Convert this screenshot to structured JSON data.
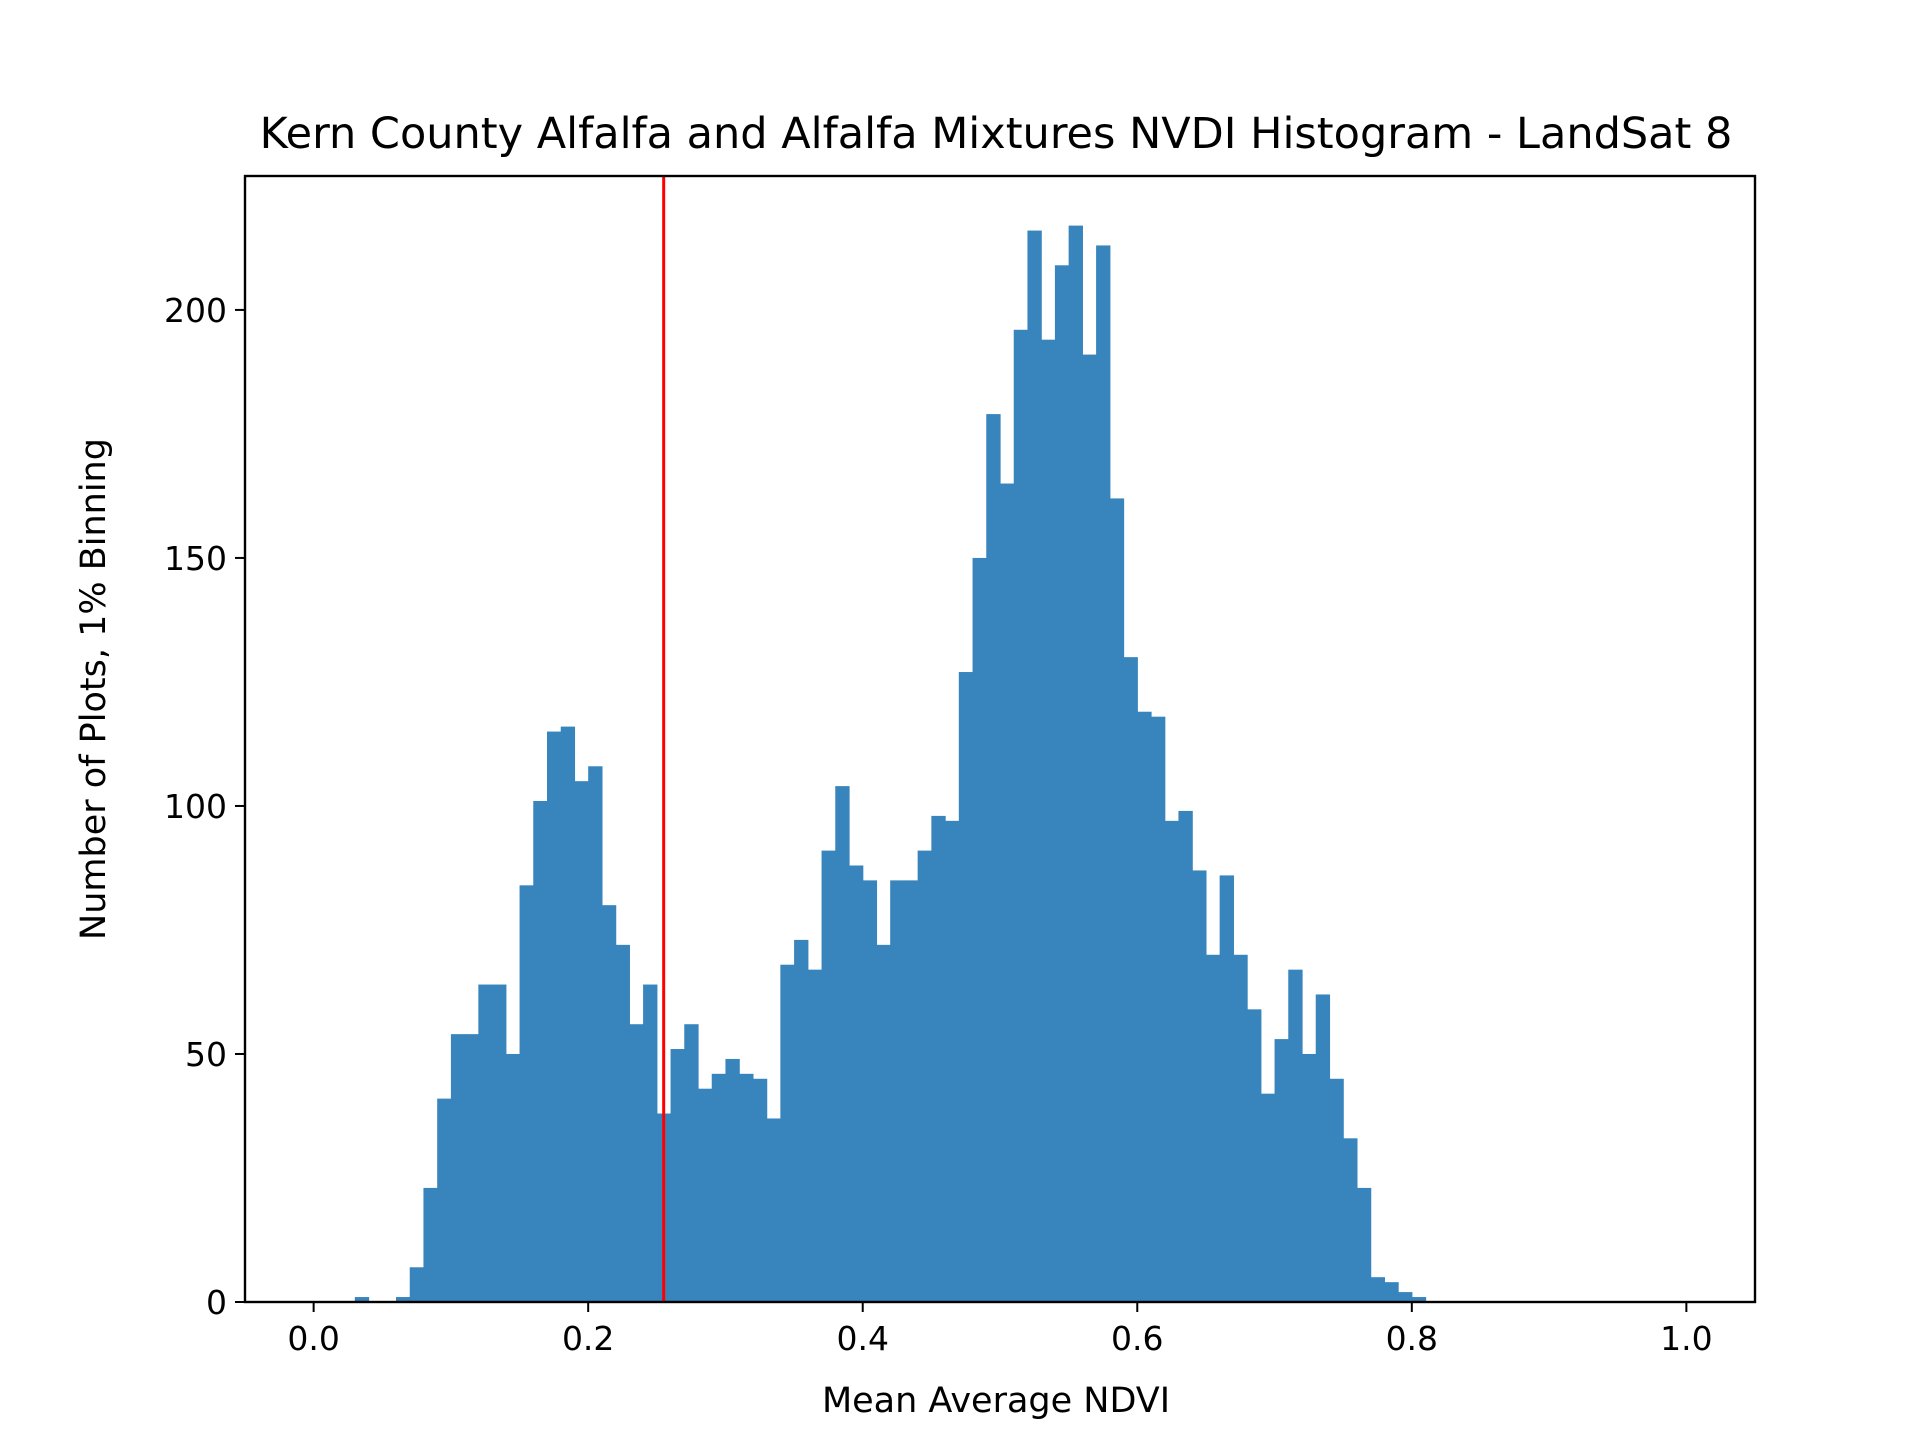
{
  "chart_data": {
    "type": "bar",
    "title": "Kern County Alfalfa and Alfalfa Mixtures NVDI Histogram - LandSat 8",
    "xlabel": "Mean Average NDVI",
    "ylabel": "Number of Plots, 1% Binning",
    "xlim": [
      -0.05,
      1.05
    ],
    "ylim": [
      0,
      227
    ],
    "xticks": [
      0.0,
      0.2,
      0.4,
      0.6,
      0.8,
      1.0
    ],
    "xtick_labels": [
      "0.0",
      "0.2",
      "0.4",
      "0.6",
      "0.8",
      "1.0"
    ],
    "yticks": [
      0,
      50,
      100,
      150,
      200
    ],
    "ytick_labels": [
      "0",
      "50",
      "100",
      "150",
      "200"
    ],
    "bin_width": 0.01,
    "bin_starts": [
      0.0,
      0.01,
      0.02,
      0.03,
      0.04,
      0.05,
      0.06,
      0.07,
      0.08,
      0.09,
      0.1,
      0.11,
      0.12,
      0.13,
      0.14,
      0.15,
      0.16,
      0.17,
      0.18,
      0.19,
      0.2,
      0.21,
      0.22,
      0.23,
      0.24,
      0.25,
      0.26,
      0.27,
      0.28,
      0.29,
      0.3,
      0.31,
      0.32,
      0.33,
      0.34,
      0.35,
      0.36,
      0.37,
      0.38,
      0.39,
      0.4,
      0.41,
      0.42,
      0.43,
      0.44,
      0.45,
      0.46,
      0.47,
      0.48,
      0.49,
      0.5,
      0.51,
      0.52,
      0.53,
      0.54,
      0.55,
      0.56,
      0.57,
      0.58,
      0.59,
      0.6,
      0.61,
      0.62,
      0.63,
      0.64,
      0.65,
      0.66,
      0.67,
      0.68,
      0.69,
      0.7,
      0.71,
      0.72,
      0.73,
      0.74,
      0.75,
      0.76,
      0.77,
      0.78,
      0.79,
      0.8,
      0.81,
      0.82,
      0.83,
      0.84,
      0.85,
      0.86,
      0.87,
      0.88,
      0.89,
      0.9,
      0.91,
      0.92,
      0.93,
      0.94,
      0.95,
      0.96,
      0.97,
      0.98,
      0.99
    ],
    "values": [
      0,
      0,
      0,
      1,
      0,
      0,
      1,
      7,
      23,
      41,
      54,
      54,
      64,
      64,
      50,
      84,
      101,
      115,
      116,
      105,
      108,
      80,
      72,
      56,
      64,
      38,
      51,
      56,
      43,
      46,
      49,
      46,
      45,
      37,
      68,
      73,
      67,
      91,
      104,
      88,
      85,
      72,
      85,
      85,
      91,
      98,
      97,
      127,
      150,
      179,
      165,
      196,
      216,
      194,
      209,
      217,
      191,
      213,
      162,
      130,
      119,
      118,
      97,
      99,
      87,
      70,
      86,
      70,
      59,
      42,
      53,
      67,
      50,
      62,
      45,
      33,
      23,
      5,
      4,
      2,
      1,
      0,
      0,
      0,
      0,
      0,
      0,
      0,
      0,
      0,
      0,
      0,
      0,
      0,
      0,
      0,
      0,
      0,
      0,
      0
    ],
    "reference_line": {
      "x": 0.255,
      "color": "#ff0000"
    },
    "bar_color": "#3884bc",
    "grid": false,
    "legend": "none"
  }
}
